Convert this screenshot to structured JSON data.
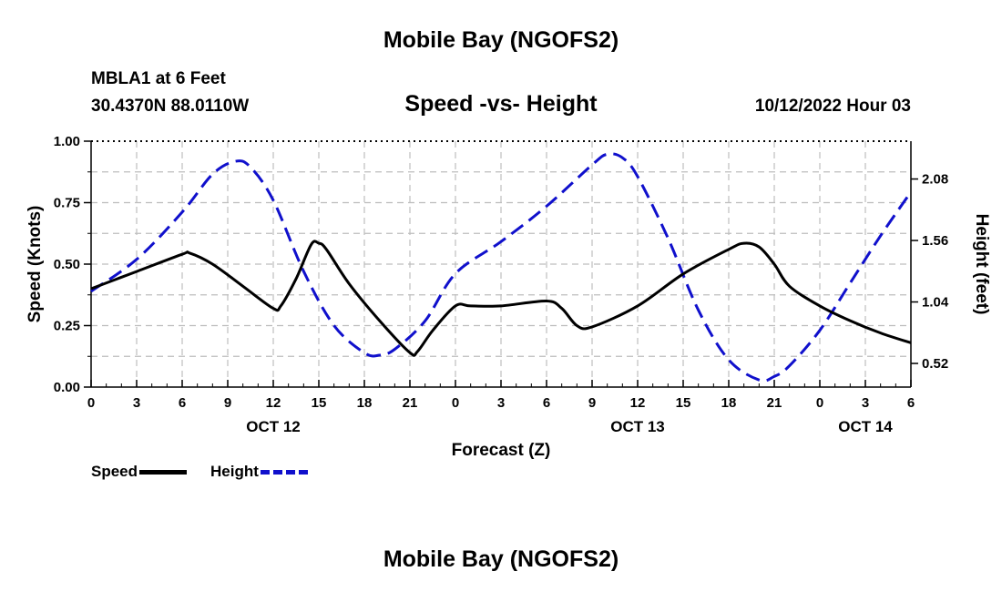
{
  "header": {
    "title": "Mobile Bay (NGOFS2)",
    "station": "MBLA1 at 6 Feet",
    "coords": "30.4370N  88.0110W",
    "subtitle": "Speed -vs- Height",
    "datetime": "10/12/2022 Hour 03"
  },
  "footer": {
    "title": "Mobile Bay (NGOFS2)"
  },
  "colors": {
    "speed": "#000000",
    "height": "#1010cc",
    "grid": "#bdbdbd"
  },
  "chart_data": {
    "type": "line",
    "title": "Speed -vs- Height",
    "xlabel": "Forecast (Z)",
    "ylabel": "Speed (Knots)",
    "y2label": "Height (feet)",
    "grid": true,
    "legend_position": "bottom-left",
    "xlim": [
      0,
      54
    ],
    "ylim": [
      0,
      1.0
    ],
    "y2lim": [
      0.32,
      2.4
    ],
    "x_ticks": [
      0,
      3,
      6,
      9,
      12,
      15,
      18,
      21,
      24,
      27,
      30,
      33,
      36,
      39,
      42,
      45,
      48,
      51,
      54
    ],
    "x_tick_labels": [
      "0",
      "3",
      "6",
      "9",
      "12",
      "15",
      "18",
      "21",
      "0",
      "3",
      "6",
      "9",
      "12",
      "15",
      "18",
      "21",
      "0",
      "3",
      "6"
    ],
    "date_labels": [
      {
        "x": 12,
        "label": "OCT 12"
      },
      {
        "x": 36,
        "label": "OCT 13"
      },
      {
        "x": 51,
        "label": "OCT 14"
      }
    ],
    "y_ticks": [
      0.0,
      0.25,
      0.5,
      0.75,
      1.0
    ],
    "y_tick_labels": [
      "0.00",
      "0.25",
      "0.50",
      "0.75",
      "1.00"
    ],
    "y2_ticks": [
      0.52,
      1.04,
      1.56,
      2.08
    ],
    "y2_tick_labels": [
      "0.52",
      "1.04",
      "1.56",
      "2.08"
    ],
    "series": [
      {
        "name": "Speed",
        "axis": "left",
        "style": "solid",
        "x": [
          0,
          3,
          6,
          6.5,
          8,
          10,
          12,
          12.5,
          13.5,
          14.5,
          15,
          15.5,
          17,
          19,
          21,
          21.5,
          22.5,
          24,
          25,
          27,
          30,
          31,
          32,
          33,
          36,
          39,
          42,
          43,
          44,
          45,
          46,
          48,
          50,
          52,
          54
        ],
        "y": [
          0.4,
          0.47,
          0.54,
          0.545,
          0.5,
          0.41,
          0.32,
          0.33,
          0.44,
          0.58,
          0.585,
          0.56,
          0.42,
          0.27,
          0.14,
          0.145,
          0.23,
          0.33,
          0.33,
          0.33,
          0.35,
          0.32,
          0.25,
          0.245,
          0.33,
          0.46,
          0.56,
          0.585,
          0.57,
          0.5,
          0.41,
          0.33,
          0.27,
          0.22,
          0.18
        ]
      },
      {
        "name": "Height",
        "axis": "right",
        "style": "dashed",
        "x": [
          0,
          3,
          6,
          8,
          9.5,
          10.5,
          12,
          14,
          16,
          18,
          19,
          20,
          22,
          24,
          27,
          30,
          33,
          34,
          35,
          36,
          38,
          40,
          42,
          44,
          45,
          46,
          48,
          50,
          52,
          54
        ],
        "y": [
          1.13,
          1.4,
          1.8,
          2.12,
          2.23,
          2.18,
          1.9,
          1.3,
          0.84,
          0.61,
          0.59,
          0.64,
          0.88,
          1.28,
          1.55,
          1.85,
          2.2,
          2.29,
          2.26,
          2.1,
          1.58,
          0.97,
          0.55,
          0.38,
          0.41,
          0.5,
          0.8,
          1.2,
          1.6,
          1.97
        ]
      }
    ]
  }
}
